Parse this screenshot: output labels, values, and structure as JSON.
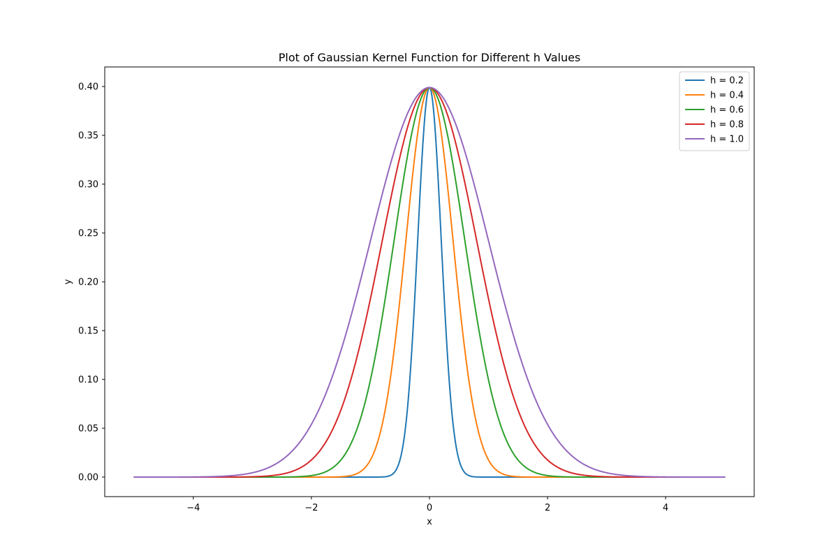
{
  "chart_data": {
    "type": "line",
    "title": "Plot of Gaussian Kernel Function for Different h Values",
    "xlabel": "x",
    "ylabel": "y",
    "xlim": [
      -5.5,
      5.5
    ],
    "ylim": [
      -0.02,
      0.42
    ],
    "x_ticks": [
      -4,
      -2,
      0,
      2,
      4
    ],
    "x_tick_labels": [
      "−4",
      "−2",
      "0",
      "2",
      "4"
    ],
    "y_ticks": [
      0.0,
      0.05,
      0.1,
      0.15,
      0.2,
      0.25,
      0.3,
      0.35,
      0.4
    ],
    "y_tick_labels": [
      "0.00",
      "0.05",
      "0.10",
      "0.15",
      "0.20",
      "0.25",
      "0.30",
      "0.35",
      "0.40"
    ],
    "x_range": [
      -5,
      5
    ],
    "grid": false,
    "legend_position": "top-right",
    "function": "y = exp(-(x/h)^2 / 2) / sqrt(2*pi)",
    "series": [
      {
        "name": "h = 0.2",
        "h": 0.2,
        "color": "#1f77b4"
      },
      {
        "name": "h = 0.4",
        "h": 0.4,
        "color": "#ff7f0e"
      },
      {
        "name": "h = 0.6",
        "h": 0.6,
        "color": "#2ca02c"
      },
      {
        "name": "h = 0.8",
        "h": 0.8,
        "color": "#d62728"
      },
      {
        "name": "h = 1.0",
        "h": 1.0,
        "color": "#9467bd"
      }
    ]
  }
}
